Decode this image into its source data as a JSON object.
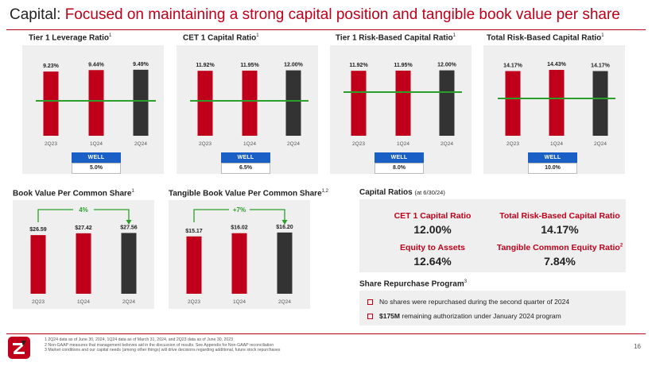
{
  "header": {
    "title_prefix": "Capital:",
    "title_rest": "Focused on maintaining a strong capital position and tangible book value per share",
    "accent_color": "#c0001a"
  },
  "chart_data": [
    {
      "type": "bar",
      "title": "Tier 1 Leverage Ratio",
      "title_sup": "1",
      "categories": [
        "2Q23",
        "1Q24",
        "2Q24"
      ],
      "values": [
        9.23,
        9.44,
        9.49
      ],
      "labels": [
        "9.23%",
        "9.44%",
        "9.49%"
      ],
      "colors": [
        "#c0001a",
        "#c0001a",
        "#333333"
      ],
      "threshold": 5.0,
      "threshold_label": "WELL CAPITALIZED",
      "threshold_value": "5.0%",
      "ylim": [
        0,
        10.5
      ]
    },
    {
      "type": "bar",
      "title": "CET 1 Capital Ratio",
      "title_sup": "1",
      "categories": [
        "2Q23",
        "1Q24",
        "2Q24"
      ],
      "values": [
        11.92,
        11.95,
        12.0
      ],
      "labels": [
        "11.92%",
        "11.95%",
        "12.00%"
      ],
      "colors": [
        "#c0001a",
        "#c0001a",
        "#333333"
      ],
      "threshold": 6.5,
      "threshold_label": "WELL CAPITALIZED",
      "threshold_value": "6.5%",
      "ylim": [
        0,
        13.4
      ]
    },
    {
      "type": "bar",
      "title": "Tier 1 Risk-Based Capital Ratio",
      "title_sup": "1",
      "categories": [
        "2Q23",
        "1Q24",
        "2Q24"
      ],
      "values": [
        11.92,
        11.95,
        12.0
      ],
      "labels": [
        "11.92%",
        "11.95%",
        "12.00%"
      ],
      "colors": [
        "#c0001a",
        "#c0001a",
        "#333333"
      ],
      "threshold": 8.0,
      "threshold_label": "WELL CAPITALIZED",
      "threshold_value": "8.0%",
      "ylim": [
        0,
        13.4
      ]
    },
    {
      "type": "bar",
      "title": "Total Risk-Based Capital Ratio",
      "title_sup": "1",
      "categories": [
        "2Q23",
        "1Q24",
        "2Q24"
      ],
      "values": [
        14.17,
        14.43,
        14.17
      ],
      "labels": [
        "14.17%",
        "14.43%",
        "14.17%"
      ],
      "colors": [
        "#c0001a",
        "#c0001a",
        "#333333"
      ],
      "threshold": 10.0,
      "threshold_label": "WELL CAPITALIZED",
      "threshold_value": "10.0%",
      "ylim": [
        0,
        16.0
      ]
    },
    {
      "type": "bar",
      "title": "Book Value Per Common Share",
      "title_sup": "1",
      "categories": [
        "2Q23",
        "1Q24",
        "2Q24"
      ],
      "values": [
        26.59,
        27.42,
        27.56
      ],
      "labels": [
        "$26.59",
        "$27.42",
        "$27.56"
      ],
      "colors": [
        "#c0001a",
        "#c0001a",
        "#333333"
      ],
      "change_label": "4%",
      "ylim": [
        0,
        36
      ]
    },
    {
      "type": "bar",
      "title": "Tangible Book Value Per Common Share",
      "title_sup": "1,2",
      "categories": [
        "2Q23",
        "1Q24",
        "2Q24"
      ],
      "values": [
        15.17,
        16.02,
        16.2
      ],
      "labels": [
        "$15.17",
        "$16.02",
        "$16.20"
      ],
      "colors": [
        "#c0001a",
        "#c0001a",
        "#333333"
      ],
      "change_label": "+7%",
      "ylim": [
        0,
        21
      ]
    }
  ],
  "capital_ratios": {
    "heading": "Capital Ratios",
    "note": "(at 6/30/24)",
    "items": [
      {
        "label": "CET 1 Capital Ratio",
        "sup": "",
        "value": "12.00%"
      },
      {
        "label": "Total Risk-Based Capital Ratio",
        "sup": "",
        "value": "14.17%"
      },
      {
        "label": "Equity to Assets",
        "sup": "",
        "value": "12.64%"
      },
      {
        "label": "Tangible Common Equity Ratio",
        "sup": "2",
        "value": "7.84%"
      }
    ]
  },
  "share_repurchase": {
    "heading": "Share Repurchase Program",
    "sup": "3",
    "item1": "No shares were repurchased during the second quarter of 2024",
    "item2_bold": "$175M",
    "item2_rest": " remaining authorization under January 2024 program"
  },
  "footnotes": {
    "f1": "1   2Q24 data as of June 30, 2024, 1Q24 data as of March 31, 2024, and 2Q23 data as of June 30, 2023",
    "f2": "2   Non-GAAP measures that management believes aid in the discussion of results. See Appendix for Non-GAAP reconciliation",
    "f3": "3   Market conditions and our capital needs (among other things) will drive decisions regarding additional, future stock repurchases"
  },
  "page_number": "16",
  "colors": {
    "bar_red": "#c0001a",
    "bar_dark": "#333333",
    "threshold_green": "#2aa02a",
    "wc_blue": "#1a5fc6",
    "panel_bg": "#efefef"
  },
  "icons": {
    "logo": "zions-logo-icon",
    "bullet": "checkbox-bullet-icon",
    "arrow": "green-arrow-icon"
  }
}
